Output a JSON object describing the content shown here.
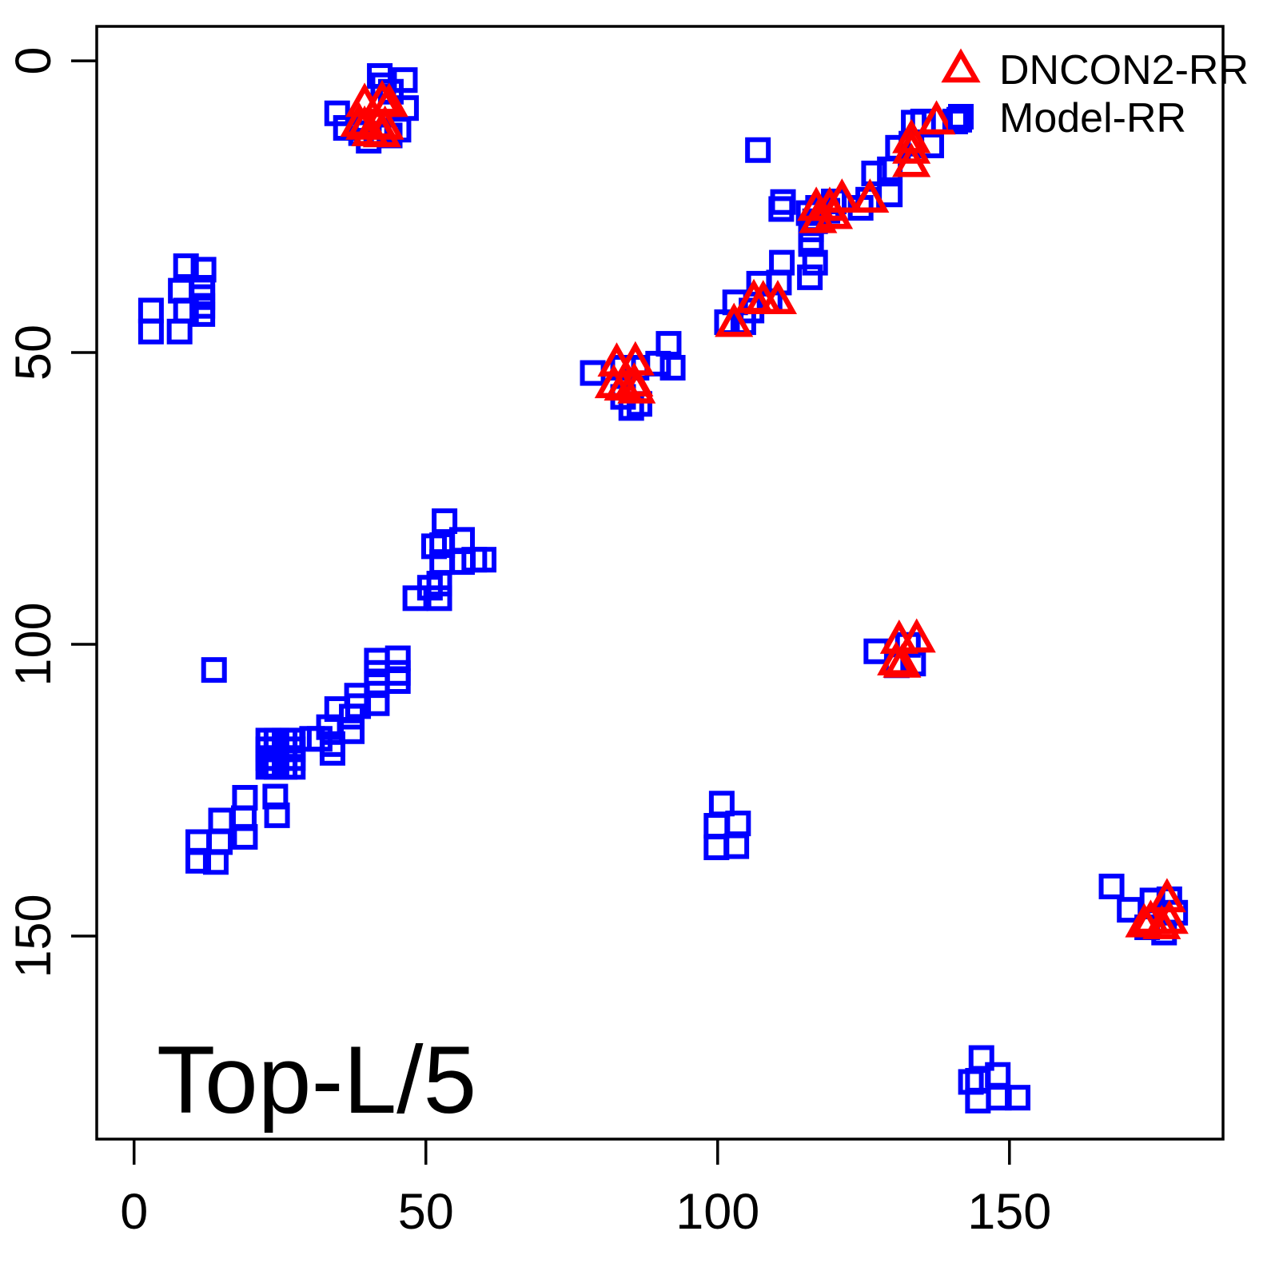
{
  "chart_data": {
    "type": "scatter",
    "title": "",
    "xlabel": "",
    "ylabel": "",
    "annotation": "Top-L/5",
    "x_ticks": [
      0,
      50,
      100,
      150
    ],
    "y_ticks": [
      0,
      50,
      100,
      150
    ],
    "xlim": [
      -6.4,
      186.6
    ],
    "ylim": [
      -5.9,
      184.8
    ],
    "y_axis_inverted": true,
    "grid": false,
    "legend_position": "top-right",
    "axis_color": "#000000",
    "background_color": "#ffffff",
    "series": [
      {
        "name": "DNCON2-RR",
        "marker": "triangle-open",
        "color": "#ff0000",
        "points": [
          [
            39.5,
            7.4
          ],
          [
            42.5,
            6.9
          ],
          [
            43.7,
            7.4
          ],
          [
            38.6,
            10.8
          ],
          [
            39.5,
            11.3
          ],
          [
            41.8,
            11.1
          ],
          [
            43.0,
            11.3
          ],
          [
            40.5,
            12.4
          ],
          [
            42.5,
            12.6
          ],
          [
            82.7,
            51.9
          ],
          [
            85.9,
            51.7
          ],
          [
            82.2,
            55.6
          ],
          [
            85.7,
            55.3
          ],
          [
            83.8,
            56.0
          ],
          [
            86.1,
            56.5
          ],
          [
            106.2,
            41.0
          ],
          [
            107.8,
            41.2
          ],
          [
            110.3,
            41.2
          ],
          [
            102.8,
            45.1
          ],
          [
            137.5,
            10.4
          ],
          [
            133.2,
            13.6
          ],
          [
            133.2,
            15.4
          ],
          [
            133.2,
            17.7
          ],
          [
            116.9,
            25.2
          ],
          [
            119.2,
            25.2
          ],
          [
            121.3,
            23.8
          ],
          [
            126.1,
            23.8
          ],
          [
            117.2,
            27.3
          ],
          [
            119.9,
            26.6
          ],
          [
            131.1,
            99.4
          ],
          [
            134.1,
            99.2
          ],
          [
            130.6,
            103.1
          ],
          [
            131.6,
            103.5
          ],
          [
            177.0,
            143.7
          ],
          [
            174.2,
            147.4
          ],
          [
            177.4,
            147.4
          ],
          [
            173.1,
            148.0
          ],
          [
            176.1,
            148.3
          ]
        ]
      },
      {
        "name": "Model-RR",
        "marker": "square-open",
        "color": "#0000ff",
        "points": [
          [
            42.1,
            2.6
          ],
          [
            46.4,
            3.3
          ],
          [
            42.7,
            4.2
          ],
          [
            44.0,
            5.3
          ],
          [
            46.6,
            8.1
          ],
          [
            34.8,
            9.0
          ],
          [
            36.3,
            11.5
          ],
          [
            38.9,
            12.4
          ],
          [
            41.5,
            12.5
          ],
          [
            43.8,
            12.8
          ],
          [
            45.3,
            11.8
          ],
          [
            40.2,
            13.7
          ],
          [
            8.9,
            35.2
          ],
          [
            11.9,
            35.8
          ],
          [
            8.0,
            39.4
          ],
          [
            11.7,
            38.9
          ],
          [
            11.7,
            40.5
          ],
          [
            11.7,
            42.0
          ],
          [
            2.9,
            42.8
          ],
          [
            8.9,
            42.8
          ],
          [
            11.7,
            43.4
          ],
          [
            2.9,
            46.4
          ],
          [
            7.8,
            46.4
          ],
          [
            91.6,
            48.5
          ],
          [
            89.8,
            51.9
          ],
          [
            92.3,
            52.6
          ],
          [
            78.6,
            53.5
          ],
          [
            83.8,
            52.6
          ],
          [
            86.1,
            52.6
          ],
          [
            83.8,
            57.6
          ],
          [
            85.2,
            59.5
          ],
          [
            86.6,
            58.8
          ],
          [
            106.9,
            15.3
          ],
          [
            110.9,
            25.4
          ],
          [
            141.4,
            10.1
          ],
          [
            13.7,
            104.4
          ],
          [
            116.0,
            31.4
          ],
          [
            111.0,
            34.6
          ],
          [
            116.7,
            34.6
          ],
          [
            110.5,
            38.0
          ],
          [
            107.1,
            38.2
          ],
          [
            115.8,
            37.1
          ],
          [
            103.0,
            41.4
          ],
          [
            105.8,
            42.8
          ],
          [
            108.9,
            41.2
          ],
          [
            101.6,
            44.8
          ],
          [
            104.4,
            44.8
          ],
          [
            133.6,
            10.6
          ],
          [
            135.2,
            10.4
          ],
          [
            140.7,
            10.4
          ],
          [
            130.9,
            14.9
          ],
          [
            133.2,
            14.2
          ],
          [
            136.6,
            14.5
          ],
          [
            126.8,
            19.3
          ],
          [
            129.5,
            18.6
          ],
          [
            125.8,
            23.8
          ],
          [
            129.5,
            22.9
          ],
          [
            124.5,
            25.2
          ],
          [
            119.9,
            24.1
          ],
          [
            117.2,
            25.2
          ],
          [
            118.8,
            25.7
          ],
          [
            115.6,
            26.1
          ],
          [
            116.7,
            27.5
          ],
          [
            116.0,
            28.9
          ],
          [
            116.0,
            30.7
          ],
          [
            111.2,
            24.2
          ],
          [
            53.2,
            78.9
          ],
          [
            56.2,
            82.1
          ],
          [
            52.8,
            83.0
          ],
          [
            51.4,
            83.2
          ],
          [
            58.3,
            85.5
          ],
          [
            59.9,
            85.5
          ],
          [
            56.2,
            85.9
          ],
          [
            52.8,
            85.9
          ],
          [
            52.3,
            89.6
          ],
          [
            50.7,
            90.3
          ],
          [
            48.2,
            92.1
          ],
          [
            52.3,
            92.1
          ],
          [
            45.2,
            102.4
          ],
          [
            41.6,
            102.8
          ],
          [
            41.6,
            104.9
          ],
          [
            45.2,
            104.9
          ],
          [
            45.2,
            106.3
          ],
          [
            41.6,
            107.0
          ],
          [
            38.2,
            108.8
          ],
          [
            41.6,
            110.1
          ],
          [
            38.4,
            110.6
          ],
          [
            34.8,
            111.1
          ],
          [
            37.3,
            112.4
          ],
          [
            33.4,
            114.2
          ],
          [
            37.3,
            114.9
          ],
          [
            23.0,
            116.5
          ],
          [
            24.4,
            116.5
          ],
          [
            25.8,
            116.5
          ],
          [
            27.2,
            116.5
          ],
          [
            23.0,
            118.0
          ],
          [
            24.4,
            118.0
          ],
          [
            25.8,
            118.0
          ],
          [
            27.2,
            118.0
          ],
          [
            23.0,
            119.5
          ],
          [
            24.4,
            119.5
          ],
          [
            25.8,
            119.5
          ],
          [
            27.2,
            119.5
          ],
          [
            23.0,
            121.0
          ],
          [
            24.4,
            121.0
          ],
          [
            25.8,
            121.0
          ],
          [
            27.2,
            121.0
          ],
          [
            30.5,
            116.2
          ],
          [
            31.8,
            116.2
          ],
          [
            34.0,
            117.1
          ],
          [
            34.0,
            118.6
          ],
          [
            23.7,
            120.8
          ],
          [
            24.2,
            126.1
          ],
          [
            24.5,
            129.3
          ],
          [
            19.0,
            126.3
          ],
          [
            18.8,
            129.8
          ],
          [
            14.9,
            130.2
          ],
          [
            19.0,
            133.0
          ],
          [
            14.7,
            133.9
          ],
          [
            11.0,
            133.9
          ],
          [
            11.0,
            137.1
          ],
          [
            14.0,
            137.3
          ],
          [
            127.2,
            101.2
          ],
          [
            132.6,
            100.1
          ],
          [
            133.5,
            103.3
          ],
          [
            130.7,
            103.6
          ],
          [
            100.7,
            127.3
          ],
          [
            103.5,
            130.7
          ],
          [
            99.8,
            131.1
          ],
          [
            103.2,
            134.6
          ],
          [
            99.8,
            134.8
          ],
          [
            167.5,
            141.5
          ],
          [
            170.6,
            145.5
          ],
          [
            174.5,
            143.9
          ],
          [
            177.4,
            143.7
          ],
          [
            178.4,
            146.0
          ],
          [
            176.5,
            149.4
          ],
          [
            173.6,
            148.5
          ],
          [
            145.2,
            170.9
          ],
          [
            148.0,
            173.8
          ],
          [
            144.6,
            174.8
          ],
          [
            143.4,
            175.0
          ],
          [
            148.2,
            177.7
          ],
          [
            151.4,
            177.7
          ],
          [
            144.6,
            178.2
          ]
        ]
      }
    ]
  }
}
